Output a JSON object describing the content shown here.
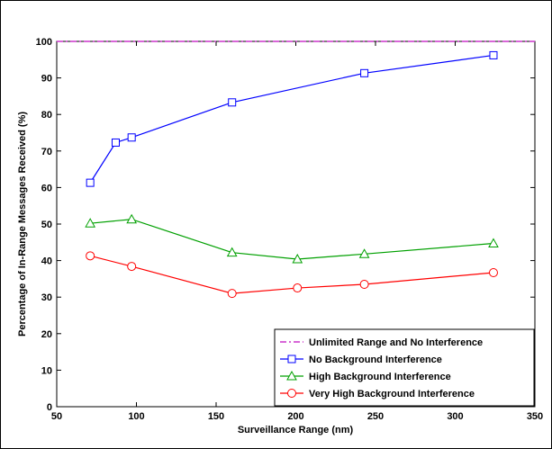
{
  "chart_data": {
    "type": "line",
    "title": "",
    "xlabel": "Surveillance Range (nm)",
    "ylabel": "Percentage of In-Range Messages Received (%)",
    "xlim": [
      50,
      350
    ],
    "ylim": [
      0,
      100
    ],
    "xticks": [
      50,
      100,
      150,
      200,
      250,
      300,
      350
    ],
    "yticks": [
      0,
      10,
      20,
      30,
      40,
      50,
      60,
      70,
      80,
      90,
      100
    ],
    "grid": false,
    "legend_position": "bottom-right",
    "series": [
      {
        "name": "Unlimited Range and No Interference",
        "color": "#cc33cc",
        "line_style": "dash-dot",
        "marker": "none",
        "x": [
          50,
          350
        ],
        "y": [
          100,
          100
        ]
      },
      {
        "name": "No Background Interference",
        "color": "#0000ff",
        "line_style": "solid",
        "marker": "square",
        "x": [
          71,
          87,
          97,
          160,
          243,
          324
        ],
        "y": [
          61.3,
          72.3,
          73.7,
          83.3,
          91.3,
          96.2
        ]
      },
      {
        "name": "High Background Interference",
        "color": "#00a000",
        "line_style": "solid",
        "marker": "triangle",
        "x": [
          71,
          97,
          160,
          201,
          243,
          324
        ],
        "y": [
          50.2,
          51.3,
          42.2,
          40.4,
          41.8,
          44.7
        ]
      },
      {
        "name": "Very High Background Interference",
        "color": "#ff0000",
        "line_style": "solid",
        "marker": "circle",
        "x": [
          71,
          97,
          160,
          201,
          243,
          324
        ],
        "y": [
          41.3,
          38.4,
          31.0,
          32.5,
          33.5,
          36.7
        ]
      }
    ]
  }
}
